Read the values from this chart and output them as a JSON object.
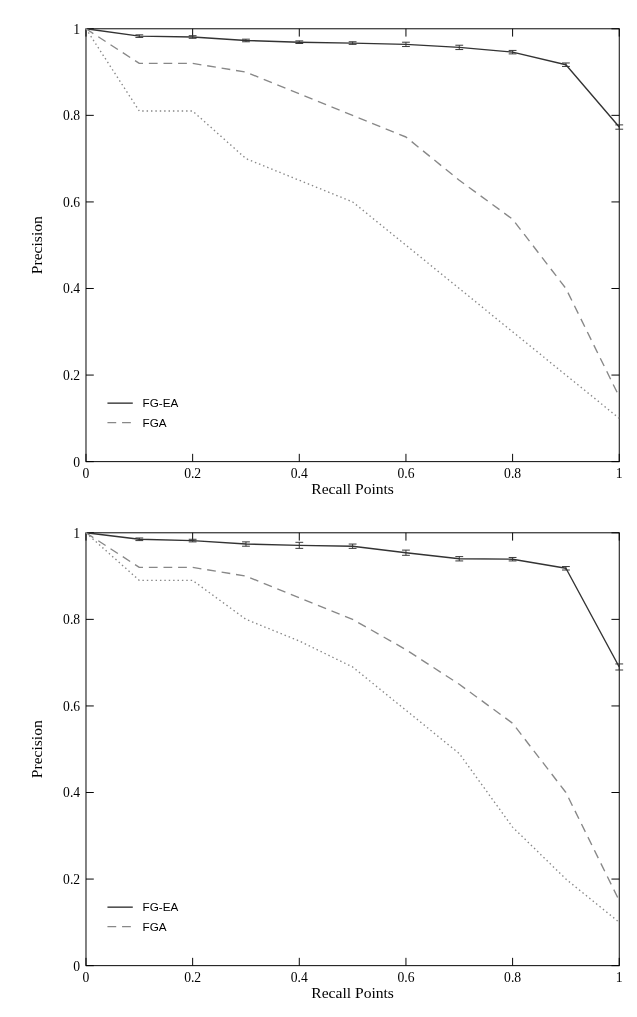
{
  "chart_data": [
    {
      "type": "line",
      "xlabel": "Recall Points",
      "ylabel": "Precision",
      "x": [
        0,
        0.1,
        0.2,
        0.3,
        0.4,
        0.5,
        0.6,
        0.7,
        0.8,
        0.9,
        1
      ],
      "xlim": [
        0,
        1
      ],
      "ylim": [
        0,
        1
      ],
      "xticks": [
        0,
        0.2,
        0.4,
        0.6,
        0.8,
        1
      ],
      "yticks": [
        0,
        0.2,
        0.4,
        0.6,
        0.8,
        1
      ],
      "grid": false,
      "legend": "bottom left",
      "marker": "none",
      "series": [
        {
          "name": "FG-EA",
          "color": "#333333",
          "line_style": "solid",
          "values": [
            1,
            0.983,
            0.981,
            0.973,
            0.969,
            0.967,
            0.964,
            0.957,
            0.946,
            0.917,
            0.773
          ],
          "errors": [
            null,
            0.003,
            0.003,
            0.003,
            0.003,
            0.003,
            0.005,
            0.005,
            0.004,
            0.004,
            0.005
          ]
        },
        {
          "name": "FGA",
          "color": "#888888",
          "line_style": "dashed",
          "values": [
            1,
            0.92,
            0.92,
            0.9,
            0.85,
            0.8,
            0.75,
            0.65,
            0.56,
            0.4,
            0.15
          ]
        },
        {
          "color": "#888888",
          "line_style": "dotted",
          "values": [
            1,
            0.81,
            0.81,
            0.7,
            0.65,
            0.6,
            0.5,
            0.4,
            0.3,
            0.2,
            0.1
          ]
        }
      ]
    },
    {
      "type": "line",
      "xlabel": "Recall Points",
      "ylabel": "Precision",
      "x": [
        0,
        0.1,
        0.2,
        0.3,
        0.4,
        0.5,
        0.6,
        0.7,
        0.8,
        0.9,
        1
      ],
      "xlim": [
        0,
        1
      ],
      "ylim": [
        0,
        1
      ],
      "xticks": [
        0,
        0.2,
        0.4,
        0.6,
        0.8,
        1
      ],
      "yticks": [
        0,
        0.2,
        0.4,
        0.6,
        0.8,
        1
      ],
      "grid": false,
      "legend": "bottom left",
      "marker": "none",
      "series": [
        {
          "name": "FG-EA",
          "color": "#333333",
          "line_style": "solid",
          "values": [
            1,
            0.985,
            0.982,
            0.974,
            0.971,
            0.969,
            0.954,
            0.94,
            0.939,
            0.918,
            0.69
          ],
          "errors": [
            null,
            0.003,
            0.003,
            0.005,
            0.007,
            0.005,
            0.006,
            0.005,
            0.004,
            0.004,
            0.007
          ]
        },
        {
          "name": "FGA",
          "color": "#888888",
          "line_style": "dashed",
          "values": [
            1,
            0.92,
            0.92,
            0.9,
            0.85,
            0.8,
            0.73,
            0.65,
            0.56,
            0.4,
            0.15
          ]
        },
        {
          "color": "#888888",
          "line_style": "dotted",
          "values": [
            1,
            0.89,
            0.89,
            0.8,
            0.75,
            0.69,
            0.59,
            0.49,
            0.32,
            0.2,
            0.1
          ]
        }
      ]
    }
  ]
}
